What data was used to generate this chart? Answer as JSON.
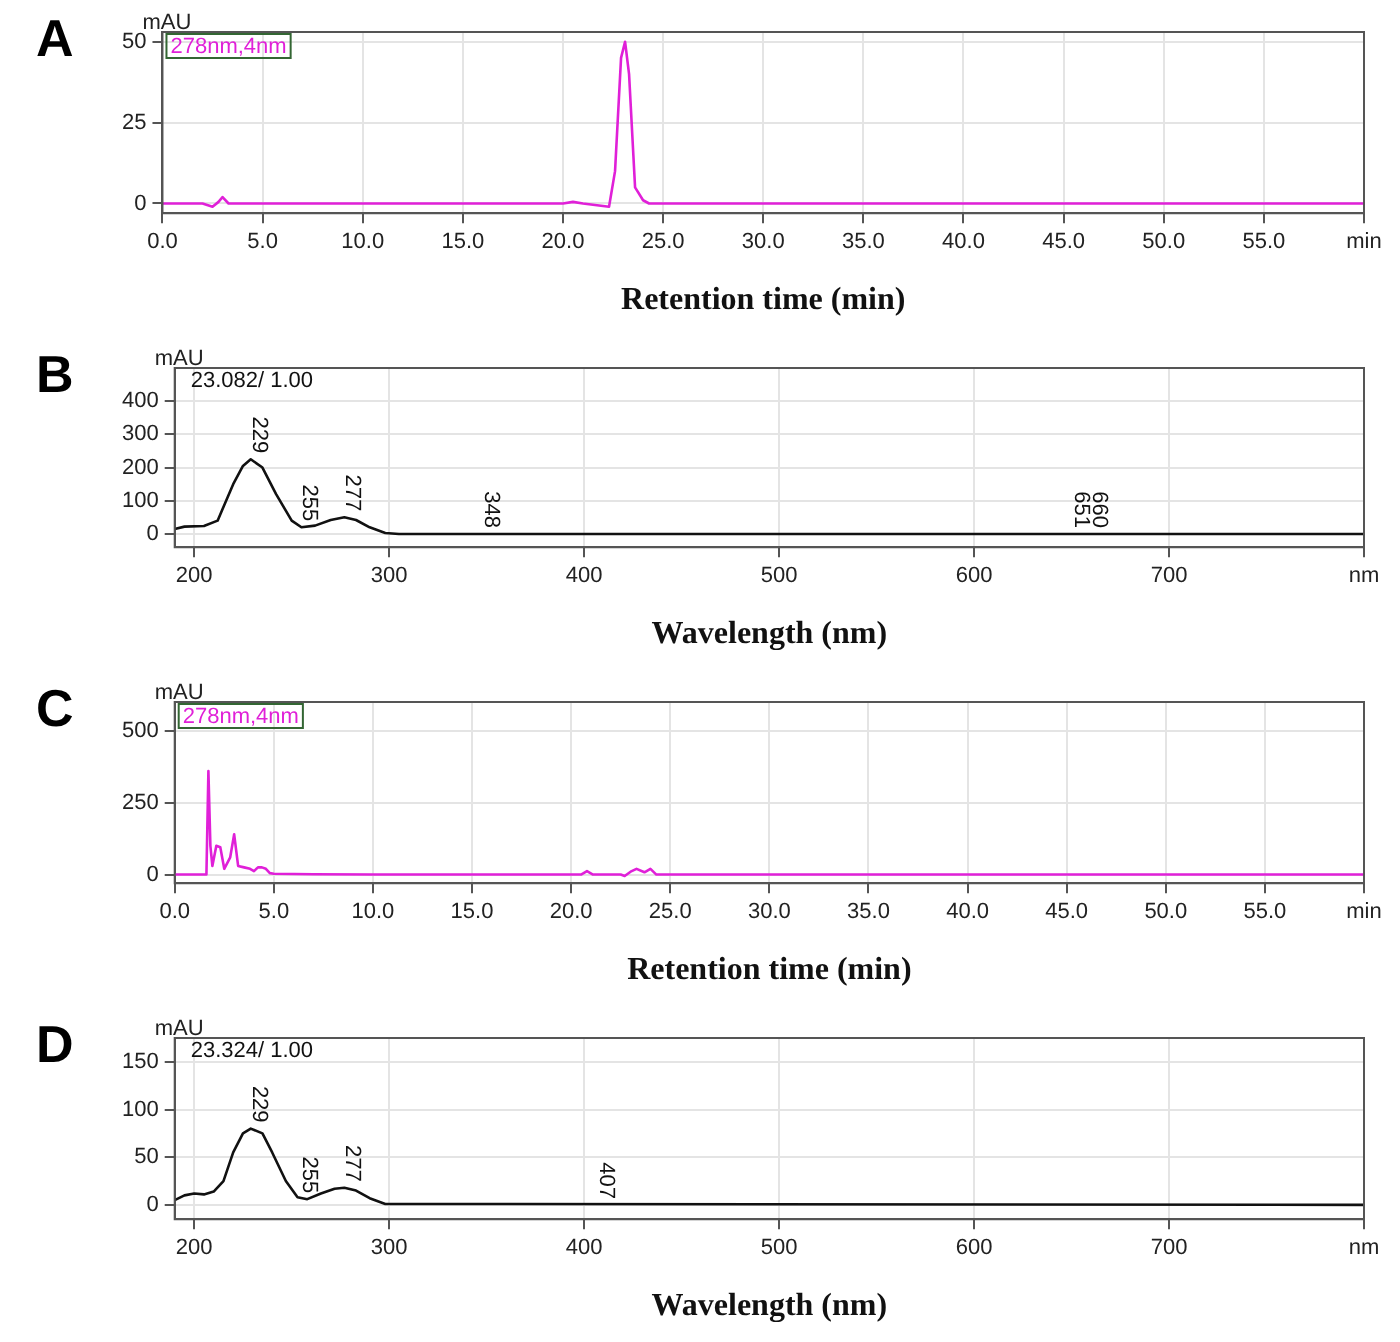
{
  "chart_data": [
    {
      "type": "line",
      "title": "A",
      "ylabel": "mAU",
      "xlabel": "Retention time (min)",
      "annotations": [
        "278nm,4nm"
      ],
      "grid": true,
      "marker": "none",
      "line_style": "solid",
      "xlim": [
        0,
        60
      ],
      "xticks": [
        {
          "value": 0,
          "label": "0.0"
        },
        {
          "value": 5,
          "label": "5.0"
        },
        {
          "value": 10,
          "label": "10.0"
        },
        {
          "value": 15,
          "label": "15.0"
        },
        {
          "value": 20,
          "label": "20.0"
        },
        {
          "value": 25,
          "label": "25.0"
        },
        {
          "value": 30,
          "label": "30.0"
        },
        {
          "value": 35,
          "label": "35.0"
        },
        {
          "value": 40,
          "label": "40.0"
        },
        {
          "value": 45,
          "label": "45.0"
        },
        {
          "value": 50,
          "label": "50.0"
        },
        {
          "value": 55,
          "label": "55.0"
        },
        {
          "value": 60,
          "label": "min"
        }
      ],
      "ylim": [
        -3,
        53
      ],
      "yticks": [
        0,
        25,
        50
      ],
      "series": [
        {
          "color": "#e020d8",
          "x": [
            0,
            2.0,
            2.5,
            2.8,
            3.0,
            3.3,
            4,
            20,
            20.5,
            21,
            22.3,
            22.6,
            22.9,
            23.1,
            23.3,
            23.6,
            24,
            24.3,
            60
          ],
          "values": [
            0,
            0,
            -1,
            0.5,
            2,
            0,
            0,
            0,
            0.5,
            0,
            -1,
            10,
            45,
            50,
            40,
            5,
            1,
            0,
            0
          ]
        }
      ]
    },
    {
      "type": "line",
      "title": "B",
      "ylabel": "mAU",
      "xlabel": "Wavelength (nm)",
      "grid": true,
      "marker": "none",
      "line_style": "solid",
      "annotations": [
        "23.082/ 1.00",
        {
          "text": "229",
          "x": 229,
          "y": 225
        },
        {
          "text": "255",
          "x": 255,
          "y": 20
        },
        {
          "text": "277",
          "x": 277,
          "y": 50
        },
        {
          "text": "348",
          "x": 348,
          "y": 0
        },
        {
          "text": "651",
          "x": 651,
          "y": 0
        },
        {
          "text": "660",
          "x": 660,
          "y": 0
        }
      ],
      "xlim": [
        190,
        800
      ],
      "xticks": [
        200,
        300,
        400,
        500,
        600,
        700,
        {
          "value": 800,
          "label": "nm"
        }
      ],
      "ylim": [
        -40,
        500
      ],
      "yticks": [
        0,
        100,
        200,
        300,
        400
      ],
      "series": [
        {
          "color": "#111111",
          "x": [
            190,
            195,
            205,
            212,
            220,
            225,
            229,
            235,
            242,
            250,
            255,
            262,
            270,
            277,
            283,
            290,
            298,
            305,
            800
          ],
          "values": [
            15,
            22,
            24,
            40,
            150,
            205,
            225,
            200,
            120,
            40,
            20,
            25,
            42,
            50,
            42,
            20,
            3,
            0,
            0
          ]
        }
      ]
    },
    {
      "type": "line",
      "title": "C",
      "ylabel": "mAU",
      "xlabel": "Retention time (min)",
      "annotations": [
        "278nm,4nm"
      ],
      "grid": true,
      "marker": "none",
      "line_style": "solid",
      "xlim": [
        0,
        60
      ],
      "xticks": [
        {
          "value": 0,
          "label": "0.0"
        },
        {
          "value": 5,
          "label": "5.0"
        },
        {
          "value": 10,
          "label": "10.0"
        },
        {
          "value": 15,
          "label": "15.0"
        },
        {
          "value": 20,
          "label": "20.0"
        },
        {
          "value": 25,
          "label": "25.0"
        },
        {
          "value": 30,
          "label": "30.0"
        },
        {
          "value": 35,
          "label": "35.0"
        },
        {
          "value": 40,
          "label": "40.0"
        },
        {
          "value": 45,
          "label": "45.0"
        },
        {
          "value": 50,
          "label": "50.0"
        },
        {
          "value": 55,
          "label": "55.0"
        },
        {
          "value": 60,
          "label": "min"
        }
      ],
      "ylim": [
        -30,
        600
      ],
      "yticks": [
        0,
        250,
        500
      ],
      "series": [
        {
          "color": "#e020d8",
          "x": [
            0,
            1.6,
            1.7,
            1.8,
            1.9,
            2.1,
            2.3,
            2.5,
            2.8,
            3.0,
            3.2,
            3.5,
            3.8,
            4.0,
            4.2,
            4.4,
            4.6,
            4.8,
            5.0,
            6,
            7,
            10,
            20.5,
            20.8,
            21.1,
            22.5,
            22.7,
            23.0,
            23.3,
            23.7,
            24.0,
            24.3,
            60
          ],
          "values": [
            0,
            0,
            360,
            100,
            30,
            100,
            95,
            20,
            60,
            140,
            30,
            25,
            20,
            12,
            25,
            25,
            20,
            5,
            3,
            2,
            1,
            0,
            0,
            12,
            0,
            0,
            -5,
            10,
            20,
            8,
            20,
            0,
            0
          ]
        }
      ]
    },
    {
      "type": "line",
      "title": "D",
      "ylabel": "mAU",
      "xlabel": "Wavelength (nm)",
      "grid": true,
      "marker": "none",
      "line_style": "solid",
      "annotations": [
        "23.324/ 1.00",
        {
          "text": "229",
          "x": 229,
          "y": 80
        },
        {
          "text": "255",
          "x": 255,
          "y": 6
        },
        {
          "text": "277",
          "x": 277,
          "y": 18
        },
        {
          "text": "407",
          "x": 407,
          "y": 0
        }
      ],
      "xlim": [
        190,
        800
      ],
      "xticks": [
        200,
        300,
        400,
        500,
        600,
        700,
        {
          "value": 800,
          "label": "nm"
        }
      ],
      "ylim": [
        -15,
        175
      ],
      "yticks": [
        0,
        50,
        100,
        150
      ],
      "series": [
        {
          "color": "#111111",
          "x": [
            190,
            195,
            200,
            205,
            210,
            215,
            220,
            225,
            229,
            235,
            240,
            247,
            253,
            258,
            265,
            272,
            277,
            283,
            290,
            298,
            800
          ],
          "values": [
            5,
            10,
            12,
            11,
            14,
            25,
            55,
            75,
            80,
            75,
            55,
            25,
            8,
            6,
            12,
            17,
            18,
            15,
            7,
            1,
            0
          ]
        }
      ]
    }
  ]
}
